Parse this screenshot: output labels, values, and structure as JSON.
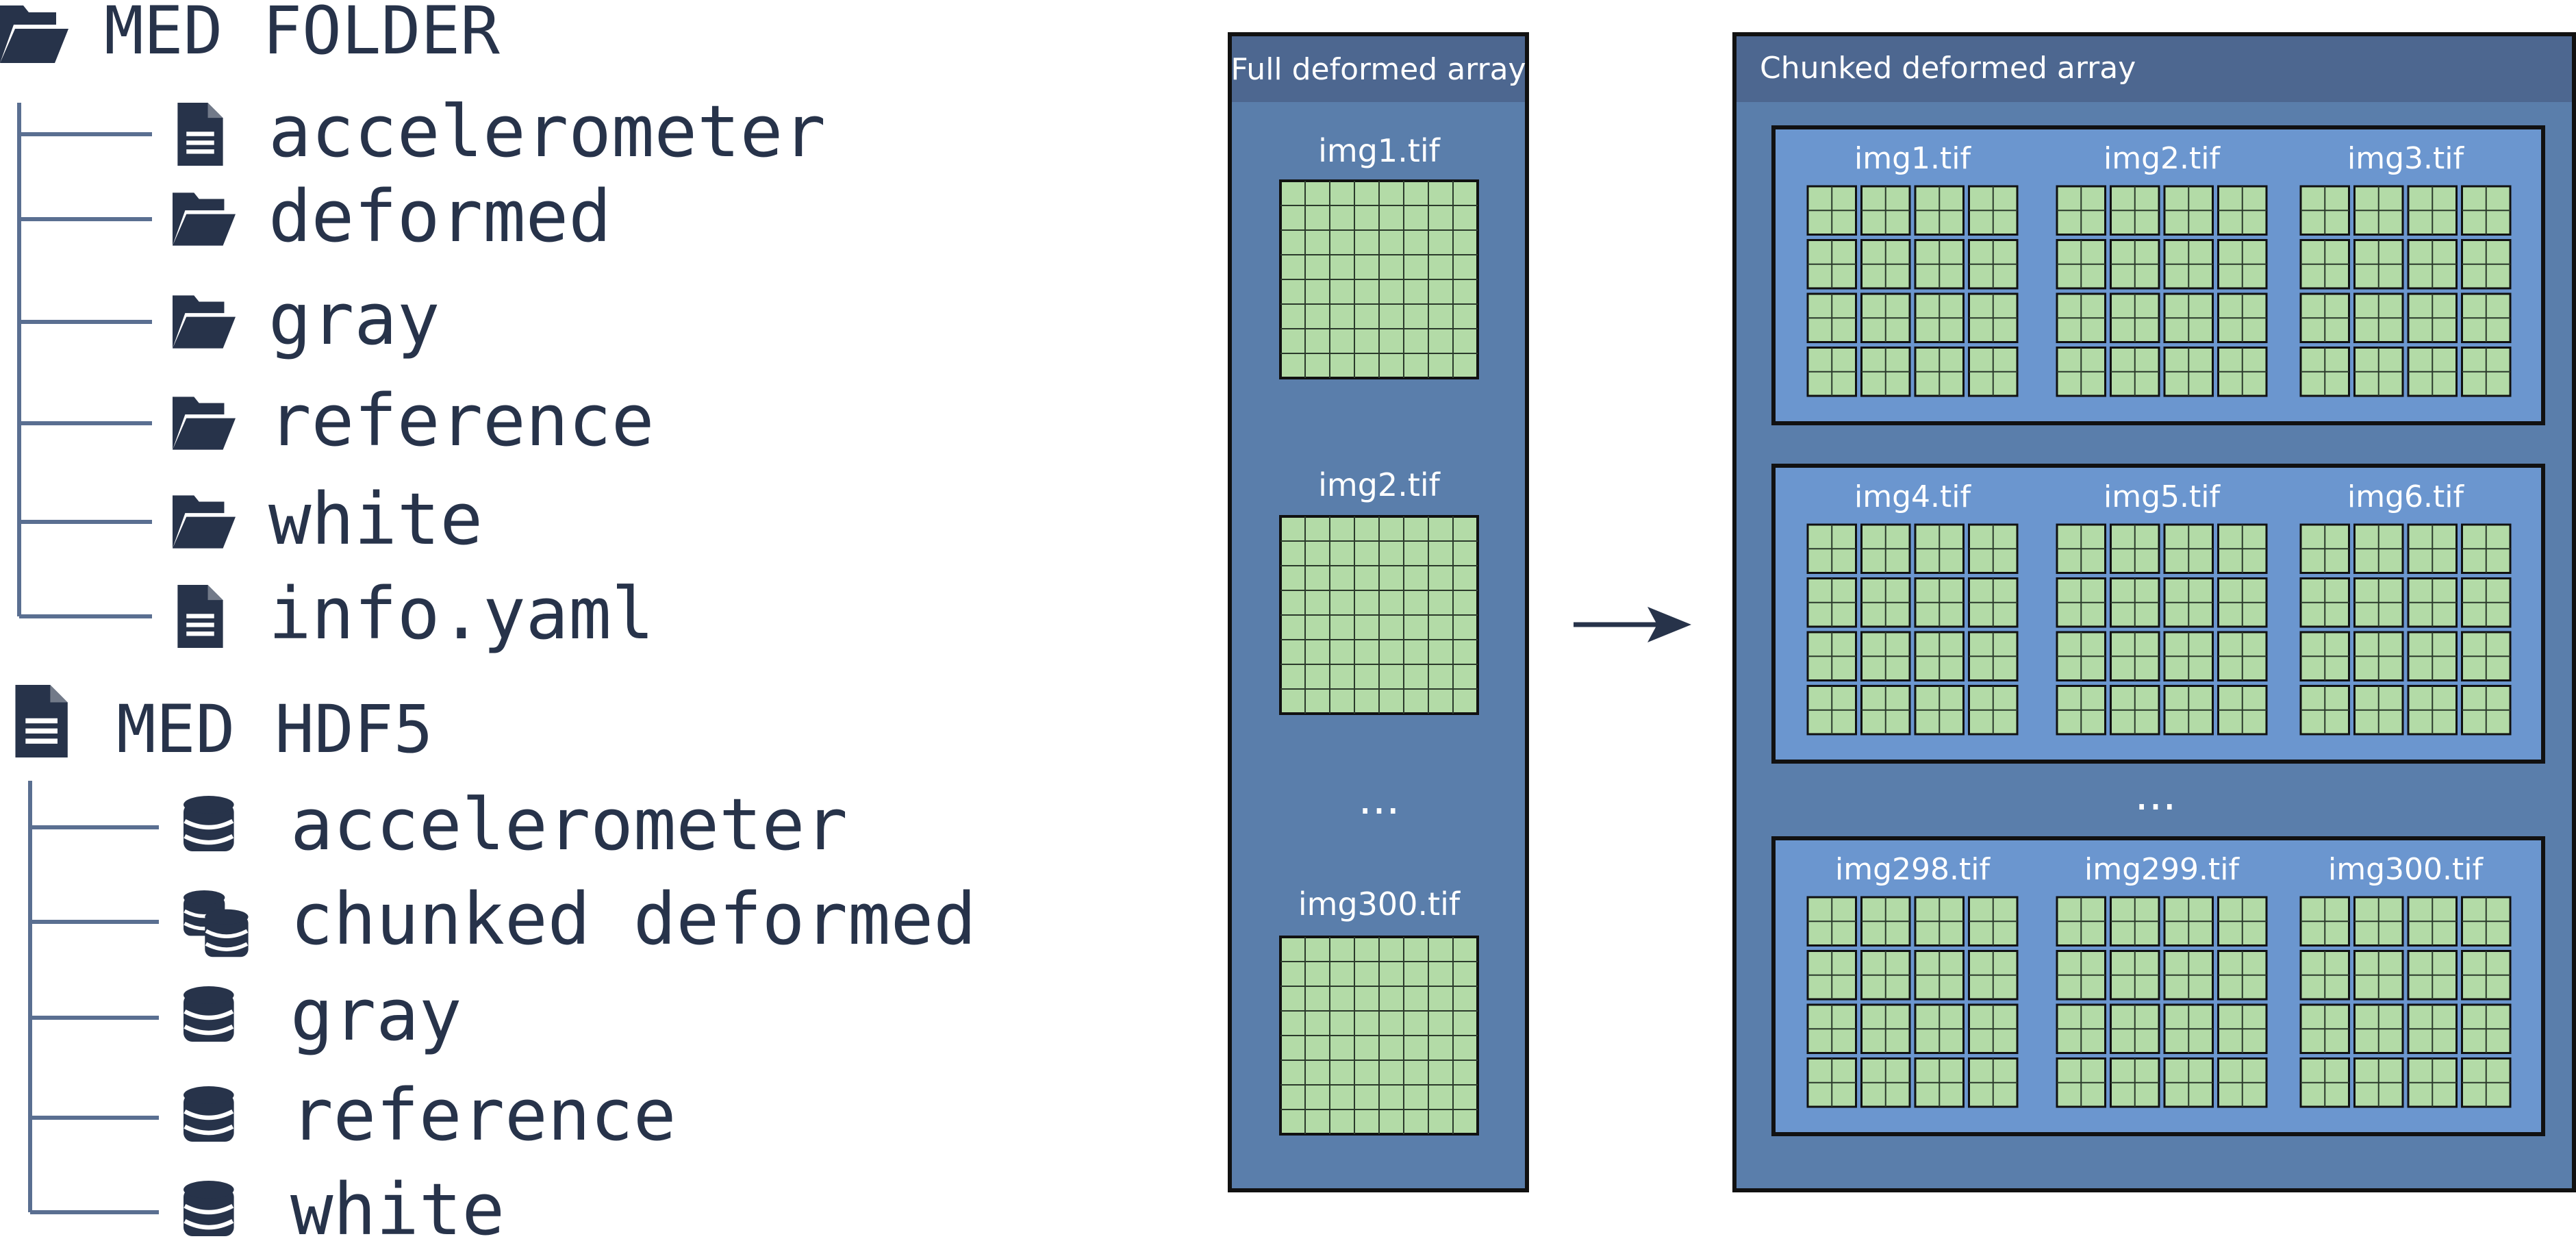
{
  "colors": {
    "ink": "#27334a",
    "tree_line": "#5a6f91",
    "panel_fill": "#5a7eab",
    "panel_header": "#4d6790",
    "group_fill": "#6b96cf",
    "cell_fill": "#b3dba7",
    "panel_text": "#ffffff",
    "arrow": "#27334a"
  },
  "folder_tree": {
    "root_label": "MED FOLDER",
    "root_icon": "folder-open-icon",
    "items": [
      {
        "label": "accelerometer",
        "icon": "file-icon"
      },
      {
        "label": "deformed",
        "icon": "folder-open-icon"
      },
      {
        "label": "gray",
        "icon": "folder-open-icon"
      },
      {
        "label": "reference",
        "icon": "folder-open-icon"
      },
      {
        "label": "white",
        "icon": "folder-open-icon"
      },
      {
        "label": "info.yaml",
        "icon": "file-icon"
      }
    ]
  },
  "hdf5_tree": {
    "root_label": "MED HDF5",
    "root_icon": "file-icon",
    "items": [
      {
        "label": "accelerometer",
        "icon": "database-icon"
      },
      {
        "label": "chunked deformed",
        "icon": "database-stack-icon"
      },
      {
        "label": "gray",
        "icon": "database-icon"
      },
      {
        "label": "reference",
        "icon": "database-icon"
      },
      {
        "label": "white",
        "icon": "database-icon"
      }
    ]
  },
  "full_array": {
    "title": "Full deformed array",
    "images": [
      "img1.tif",
      "img2.tif",
      "img300.tif"
    ],
    "ellipsis": "...",
    "grid_cells": 8
  },
  "arrow": {
    "icon": "right-arrow-icon"
  },
  "chunked_array": {
    "title": "Chunked deformed array",
    "groups": [
      [
        "img1.tif",
        "img2.tif",
        "img3.tif"
      ],
      [
        "img4.tif",
        "img5.tif",
        "img6.tif"
      ],
      [
        "img298.tif",
        "img299.tif",
        "img300.tif"
      ]
    ],
    "ellipsis": "...",
    "chunks_per_side": 4,
    "cells_per_chunk": 2
  }
}
